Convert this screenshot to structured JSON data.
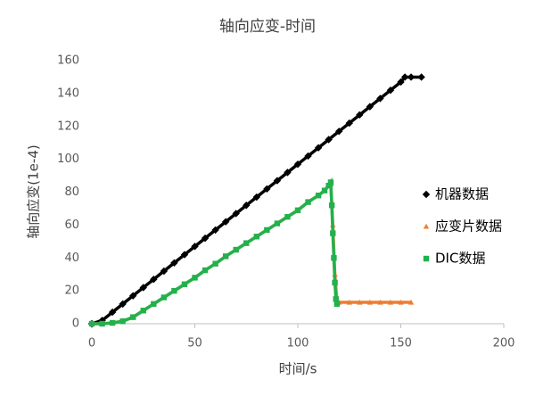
{
  "chart_data": {
    "type": "scatter",
    "title": "轴向应变-时间",
    "x_label": "时间/s",
    "y_label": "轴向应变(1e-4)",
    "xlim": [
      0,
      200
    ],
    "xticks": [
      0,
      50,
      100,
      150,
      200
    ],
    "ylim": [
      0,
      160
    ],
    "yticks": [
      0,
      20,
      40,
      60,
      80,
      100,
      120,
      140,
      160
    ],
    "grid": false,
    "legend": "right",
    "series": [
      {
        "name": "机器数据",
        "color": "#000000",
        "marker": "diamond",
        "x": [
          0,
          5,
          10,
          15,
          20,
          25,
          30,
          35,
          40,
          45,
          50,
          55,
          60,
          65,
          70,
          75,
          80,
          85,
          90,
          95,
          100,
          105,
          110,
          115,
          120,
          125,
          130,
          135,
          140,
          145,
          150,
          152,
          155,
          160
        ],
        "values": [
          0,
          2,
          7,
          12,
          17,
          22,
          27,
          32,
          37,
          42,
          47,
          52,
          57,
          62,
          67,
          72,
          77,
          82,
          87,
          92,
          97,
          102,
          107,
          112,
          117,
          122,
          127,
          132,
          137,
          142,
          147,
          150,
          150,
          150
        ]
      },
      {
        "name": "应变片数据",
        "color": "#ed7d31",
        "marker": "triangle",
        "x": [
          0,
          5,
          10,
          15,
          20,
          25,
          30,
          35,
          40,
          45,
          50,
          55,
          60,
          65,
          70,
          75,
          80,
          85,
          90,
          95,
          100,
          105,
          110,
          113,
          115,
          116,
          117,
          118,
          119,
          120,
          125,
          130,
          135,
          140,
          145,
          150,
          155
        ],
        "values": [
          0,
          0,
          0.5,
          1.5,
          4,
          8,
          12,
          16,
          20,
          24,
          28,
          32.5,
          36.5,
          41,
          45,
          49,
          53,
          57,
          61,
          65,
          69,
          74,
          78,
          81,
          84,
          85,
          60,
          30,
          14,
          13,
          13,
          13,
          13,
          13,
          13,
          13,
          13
        ]
      },
      {
        "name": "DIC数据",
        "color": "#22b14c",
        "marker": "square",
        "x": [
          0,
          5,
          10,
          15,
          20,
          25,
          30,
          35,
          40,
          45,
          50,
          55,
          60,
          65,
          70,
          75,
          80,
          85,
          90,
          95,
          100,
          105,
          110,
          113,
          115,
          116,
          116.5,
          117,
          117.5,
          118,
          118.5,
          119
        ],
        "values": [
          0,
          0,
          0.5,
          1.5,
          4,
          8,
          12,
          16,
          20,
          24,
          28,
          32.5,
          36.5,
          41,
          45,
          49,
          53,
          57,
          61,
          65,
          69,
          74,
          78,
          81,
          84,
          86,
          72,
          55,
          40,
          25,
          15,
          12
        ]
      }
    ]
  }
}
